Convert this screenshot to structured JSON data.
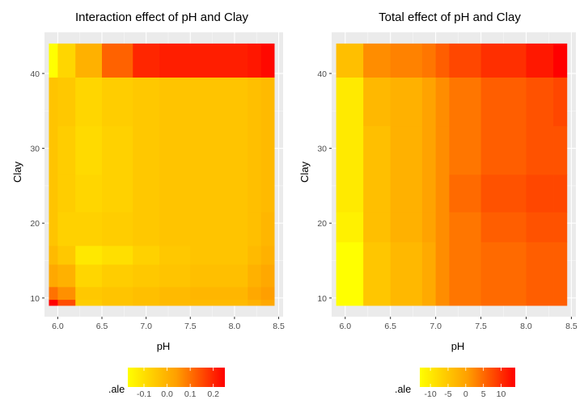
{
  "chart_data": [
    {
      "type": "heatmap",
      "title": "Interaction effect of pH and Clay",
      "xlabel": "pH",
      "ylabel": "Clay",
      "xlim": [
        5.85,
        8.55
      ],
      "ylim": [
        7.5,
        45.5
      ],
      "xticks": [
        6.0,
        6.5,
        7.0,
        7.5,
        8.0,
        8.5
      ],
      "xtick_labels": [
        "6.0",
        "6.5",
        "7.0",
        "7.5",
        "8.0",
        "8.5"
      ],
      "yticks": [
        10,
        20,
        30,
        40
      ],
      "ytick_labels": [
        "10",
        "20",
        "30",
        "40"
      ],
      "x_edges": [
        5.9,
        6.0,
        6.2,
        6.5,
        6.85,
        7.15,
        7.5,
        8.15,
        8.3,
        8.45
      ],
      "y_edges": [
        9.0,
        9.8,
        11.5,
        14.5,
        17.0,
        21.5,
        26.5,
        33.0,
        39.5,
        44.0
      ],
      "z": [
        [
          0.25,
          0.15,
          -0.06,
          -0.04,
          -0.03,
          -0.02,
          -0.02,
          0.0,
          0.02
        ],
        [
          0.1,
          0.06,
          -0.05,
          -0.04,
          -0.03,
          -0.02,
          -0.01,
          0.02,
          0.04
        ],
        [
          0.02,
          0.0,
          -0.08,
          -0.06,
          -0.05,
          -0.04,
          -0.03,
          0.0,
          0.02
        ],
        [
          -0.02,
          -0.05,
          -0.12,
          -0.1,
          -0.07,
          -0.05,
          -0.04,
          -0.02,
          0.0
        ],
        [
          -0.04,
          -0.07,
          -0.07,
          -0.06,
          -0.05,
          -0.04,
          -0.04,
          -0.03,
          -0.01
        ],
        [
          -0.04,
          -0.06,
          -0.08,
          -0.07,
          -0.05,
          -0.04,
          -0.04,
          -0.03,
          -0.02
        ],
        [
          -0.04,
          -0.06,
          -0.09,
          -0.07,
          -0.05,
          -0.04,
          -0.04,
          -0.03,
          -0.02
        ],
        [
          -0.04,
          -0.05,
          -0.08,
          -0.06,
          -0.05,
          -0.04,
          -0.04,
          -0.03,
          -0.02
        ],
        [
          -0.17,
          -0.08,
          0.0,
          0.12,
          0.2,
          0.21,
          0.21,
          0.22,
          0.24
        ]
      ],
      "legend": {
        "title": ".ale",
        "min": -0.17,
        "max": 0.25,
        "ticks": [
          -0.1,
          0.0,
          0.1,
          0.2
        ],
        "tick_labels": [
          "-0.1",
          "0.0",
          "0.1",
          "0.2"
        ]
      },
      "colors": {
        "low": "#ffff00",
        "mid": "#ff9f00",
        "high": "#ff0000"
      }
    },
    {
      "type": "heatmap",
      "title": "Total effect of pH and Clay",
      "xlabel": "pH",
      "ylabel": "Clay",
      "xlim": [
        5.85,
        8.55
      ],
      "ylim": [
        7.5,
        45.5
      ],
      "xticks": [
        6.0,
        6.5,
        7.0,
        7.5,
        8.0,
        8.5
      ],
      "xtick_labels": [
        "6.0",
        "6.5",
        "7.0",
        "7.5",
        "8.0",
        "8.5"
      ],
      "yticks": [
        10,
        20,
        30,
        40
      ],
      "ytick_labels": [
        "10",
        "20",
        "30",
        "40"
      ],
      "x_edges": [
        5.9,
        6.2,
        6.5,
        6.85,
        7.0,
        7.15,
        7.5,
        8.0,
        8.3,
        8.45
      ],
      "y_edges": [
        9.0,
        17.5,
        21.5,
        26.5,
        33.0,
        39.5,
        44.0
      ],
      "z": [
        [
          -13,
          -5,
          -3,
          -1,
          2,
          4,
          5,
          6,
          6
        ],
        [
          -11,
          -4,
          -2,
          0,
          2,
          4,
          6,
          7,
          7
        ],
        [
          -10,
          -4,
          -2,
          0,
          2,
          5,
          7,
          8,
          8
        ],
        [
          -10,
          -4,
          -2,
          0,
          2,
          4,
          6,
          7,
          7
        ],
        [
          -10,
          -3,
          -2,
          0,
          2,
          4,
          6,
          7,
          8
        ],
        [
          -4,
          2,
          3,
          4,
          6,
          8,
          10,
          12,
          14
        ]
      ],
      "legend": {
        "title": ".ale",
        "min": -13,
        "max": 14,
        "ticks": [
          -10,
          -5,
          0,
          5,
          10
        ],
        "tick_labels": [
          "-10",
          "-5",
          "0",
          "5",
          "10"
        ]
      },
      "colors": {
        "low": "#ffff00",
        "mid": "#ff9f00",
        "high": "#ff0000"
      }
    }
  ]
}
